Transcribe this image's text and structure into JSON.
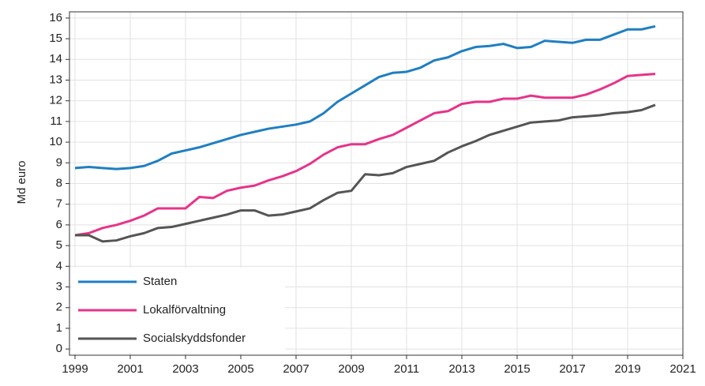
{
  "chart_data": {
    "type": "line",
    "y_label": "Md euro",
    "x": [
      1999,
      1999.5,
      2000,
      2000.5,
      2001,
      2001.5,
      2002,
      2002.5,
      2003,
      2003.5,
      2004,
      2004.5,
      2005,
      2005.5,
      2006,
      2006.5,
      2007,
      2007.5,
      2008,
      2008.5,
      2009,
      2009.5,
      2010,
      2010.5,
      2011,
      2011.5,
      2012,
      2012.5,
      2013,
      2013.5,
      2014,
      2014.5,
      2015,
      2015.5,
      2016,
      2016.5,
      2017,
      2017.5,
      2018,
      2018.5,
      2019,
      2019.5,
      2020
    ],
    "series": [
      {
        "name": "Staten",
        "color": "#1f7fc1",
        "values": [
          8.75,
          8.8,
          8.75,
          8.7,
          8.75,
          8.85,
          9.1,
          9.45,
          9.6,
          9.75,
          9.95,
          10.15,
          10.35,
          10.5,
          10.65,
          10.75,
          10.85,
          11.0,
          11.4,
          11.95,
          12.35,
          12.75,
          13.15,
          13.35,
          13.4,
          13.6,
          13.95,
          14.1,
          14.4,
          14.6,
          14.65,
          14.75,
          14.55,
          14.6,
          14.9,
          14.85,
          14.8,
          14.95,
          14.95,
          15.2,
          15.45,
          15.45,
          15.6
        ]
      },
      {
        "name": "Lokalförvaltning",
        "color": "#e6348a",
        "values": [
          5.5,
          5.6,
          5.85,
          6.0,
          6.2,
          6.45,
          6.8,
          6.8,
          6.8,
          7.35,
          7.3,
          7.65,
          7.8,
          7.9,
          8.15,
          8.35,
          8.6,
          8.95,
          9.4,
          9.75,
          9.9,
          9.9,
          10.15,
          10.35,
          10.7,
          11.05,
          11.4,
          11.5,
          11.85,
          11.95,
          11.95,
          12.1,
          12.1,
          12.25,
          12.15,
          12.15,
          12.15,
          12.3,
          12.55,
          12.85,
          13.2,
          13.25,
          13.3
        ]
      },
      {
        "name": "Socialskyddsfonder",
        "color": "#555555",
        "values": [
          5.5,
          5.5,
          5.2,
          5.25,
          5.45,
          5.6,
          5.85,
          5.9,
          6.05,
          6.2,
          6.35,
          6.5,
          6.7,
          6.7,
          6.45,
          6.5,
          6.65,
          6.8,
          7.2,
          7.55,
          7.65,
          8.45,
          8.4,
          8.5,
          8.8,
          8.95,
          9.1,
          9.5,
          9.8,
          10.05,
          10.35,
          10.55,
          10.75,
          10.95,
          11.0,
          11.05,
          11.2,
          11.25,
          11.3,
          11.4,
          11.45,
          11.55,
          11.8
        ]
      }
    ],
    "xlim": [
      1998.8,
      2021
    ],
    "xticks": [
      1999,
      2001,
      2003,
      2005,
      2007,
      2009,
      2011,
      2013,
      2015,
      2017,
      2019,
      2021
    ],
    "ylim": [
      -0.3,
      16.3
    ],
    "yticks": [
      0,
      1,
      2,
      3,
      4,
      5,
      6,
      7,
      8,
      9,
      10,
      11,
      12,
      13,
      14,
      15,
      16
    ],
    "grid": true,
    "legend": "lower left"
  }
}
